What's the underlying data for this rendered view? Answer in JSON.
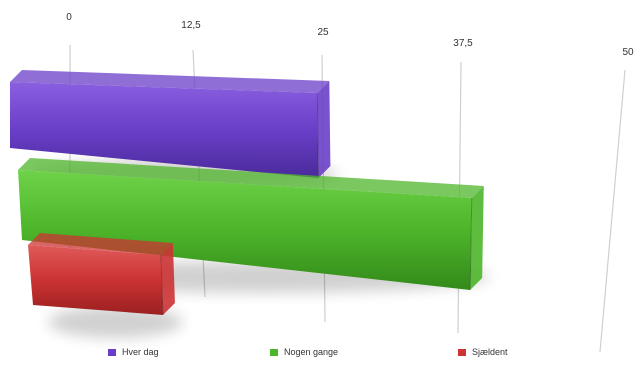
{
  "chart_data": {
    "type": "bar",
    "orientation": "horizontal",
    "style": "3d-perspective",
    "xlim": [
      0,
      50
    ],
    "tick_labels": [
      "0",
      "12,5",
      "25",
      "37,5",
      "50"
    ],
    "grid": true,
    "legend_position": "bottom",
    "series": [
      {
        "name": "Hver dag",
        "value": 24.5,
        "color": "#6a3fc8"
      },
      {
        "name": "Nogen gange",
        "value": 38.5,
        "color": "#4db52a"
      },
      {
        "name": "Sjældent",
        "value": 8.5,
        "color": "#cc3333"
      }
    ]
  }
}
